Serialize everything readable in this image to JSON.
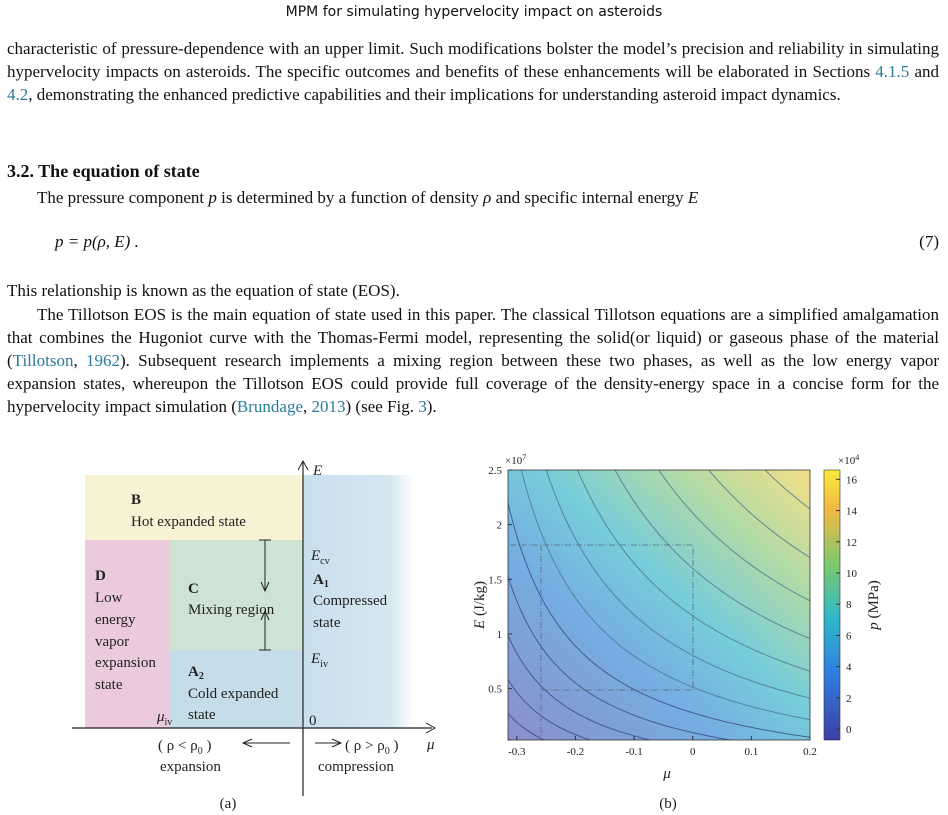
{
  "header": "MPM for simulating hypervelocity impact on asteroids",
  "paragraph_1": [
    "characteristic of pressure-dependence with an upper limit. Such modifications bolster the model’s precision and reliability in simulating hypervelocity impacts on asteroids. The specific outcomes and benefits of these enhancements will be elaborated in Sections ",
    "4.1.5",
    " and ",
    "4.2",
    ", demonstrating the enhanced predictive capabilities and their implications for understanding asteroid impact dynamics."
  ],
  "section_heading": "3.2. The equation of state",
  "paragraph_2": [
    "The pressure component ",
    "p",
    " is determined by a function of density ",
    "ρ",
    " and specific internal energy ",
    "E"
  ],
  "equation": "p = p(ρ, E) .",
  "equation_number": "(7)",
  "paragraph_3": "This relationship is known as the equation of state (EOS).",
  "paragraph_4": [
    "The Tillotson EOS is the main equation of state used in this paper. The classical Tillotson equations are a simplified amalgamation that combines the Hugoniot curve with the Thomas-Fermi model, representing the solid(or liquid) or gaseous phase of the material (",
    "Tillotson",
    ", ",
    "1962",
    "). Subsequent research implements a mixing region between these two phases, as well as the low energy vapor expansion states, whereupon the Tillotson EOS could provide full coverage of the density-energy space in a concise form for the hypervelocity impact simulation (",
    "Brundage",
    ", ",
    "2013",
    ") (see Fig. ",
    "3",
    ")."
  ],
  "figure_a": {
    "e_axis": "E",
    "b": {
      "label": "B",
      "text": "Hot expanded state"
    },
    "e_cv": {
      "main": "E",
      "sub": "cv"
    },
    "d": {
      "label": "D",
      "lines": [
        "Low",
        "energy",
        "vapor",
        "expansion",
        "state"
      ]
    },
    "c": {
      "label": "C",
      "text": "Mixing region"
    },
    "a1": {
      "label": {
        "main": "A",
        "sub": "1"
      },
      "lines": [
        "Compressed",
        "state"
      ]
    },
    "e_iv": {
      "main": "E",
      "sub": "iv"
    },
    "a2": {
      "label": {
        "main": "A",
        "sub": "2"
      },
      "lines": [
        "Cold expanded",
        "state"
      ]
    },
    "mu_iv": {
      "main": "μ",
      "sub": "iv"
    },
    "origin": "0",
    "mu_axis": "μ",
    "left_condition": {
      "main": "( ρ < ρ",
      "sub": "0",
      "end": " )"
    },
    "left_text": "expansion",
    "right_condition": {
      "main": "( ρ > ρ",
      "sub": "0",
      "end": " )"
    },
    "right_text": "compression",
    "caption": "(a)"
  },
  "figure_b": {
    "type": "contour",
    "xlabel": "μ",
    "ylabel": {
      "symbol": "E",
      "unit": " (J/kg)"
    },
    "y_multiplier": {
      "base": "×10",
      "exp": "7"
    },
    "xlim": [
      -0.315,
      0.2
    ],
    "xticks": [
      -0.3,
      -0.2,
      -0.1,
      0,
      0.1,
      0.2
    ],
    "ylim": [
      0.03,
      2.5
    ],
    "yticks": [
      0.5,
      1,
      1.5,
      2,
      2.5
    ],
    "colorbar": {
      "label": {
        "symbol": "p",
        "unit": " (MPa)"
      },
      "multiplier": {
        "base": "×10",
        "exp": "4"
      },
      "lim": [
        -0.7,
        16.6
      ],
      "ticks": [
        0,
        2,
        4,
        6,
        8,
        10,
        12,
        14,
        16
      ]
    },
    "caption": "(b)"
  }
}
